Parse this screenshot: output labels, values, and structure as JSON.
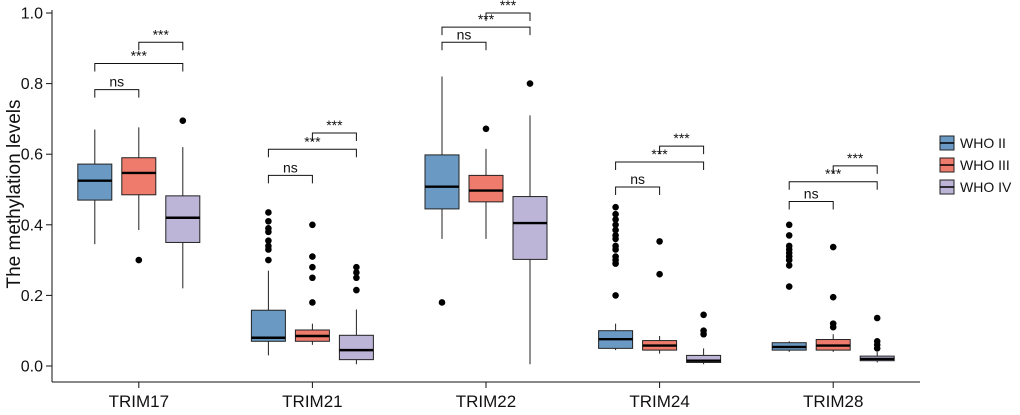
{
  "chart_data": {
    "type": "boxplot",
    "title": "",
    "xlabel": "",
    "ylabel": "The methylation levels",
    "ylim": [
      0,
      1.0
    ],
    "yticks": [
      "0.0",
      "0.2",
      "0.4",
      "0.6",
      "0.8",
      "1.0"
    ],
    "grid": false,
    "legend_position": "right",
    "categories": [
      "TRIM17",
      "TRIM21",
      "TRIM22",
      "TRIM24",
      "TRIM28"
    ],
    "series": [
      {
        "name": "WHO II",
        "color": "#6a9ac4",
        "boxes": [
          {
            "whisker_low": 0.345,
            "q1": 0.47,
            "median": 0.525,
            "q3": 0.572,
            "whisker_high": 0.67,
            "outliers": []
          },
          {
            "whisker_low": 0.03,
            "q1": 0.07,
            "median": 0.08,
            "q3": 0.158,
            "whisker_high": 0.27,
            "outliers": [
              0.3,
              0.33,
              0.34,
              0.355,
              0.38,
              0.39,
              0.41,
              0.435
            ]
          },
          {
            "whisker_low": 0.36,
            "q1": 0.445,
            "median": 0.508,
            "q3": 0.598,
            "whisker_high": 0.82,
            "outliers": [
              0.18
            ]
          },
          {
            "whisker_low": 0.045,
            "q1": 0.05,
            "median": 0.076,
            "q3": 0.1,
            "whisker_high": 0.12,
            "outliers": [
              0.2,
              0.29,
              0.3,
              0.31,
              0.33,
              0.34,
              0.36,
              0.37,
              0.385,
              0.4,
              0.415,
              0.43,
              0.45
            ]
          },
          {
            "whisker_low": 0.04,
            "q1": 0.045,
            "median": 0.054,
            "q3": 0.066,
            "whisker_high": 0.07,
            "outliers": [
              0.225,
              0.285,
              0.3,
              0.31,
              0.32,
              0.33,
              0.34,
              0.37,
              0.4
            ]
          }
        ]
      },
      {
        "name": "WHO III",
        "color": "#ee7b6c",
        "boxes": [
          {
            "whisker_low": 0.385,
            "q1": 0.485,
            "median": 0.547,
            "q3": 0.59,
            "whisker_high": 0.676,
            "outliers": [
              0.3
            ]
          },
          {
            "whisker_low": 0.06,
            "q1": 0.07,
            "median": 0.085,
            "q3": 0.102,
            "whisker_high": 0.12,
            "outliers": [
              0.18,
              0.25,
              0.28,
              0.31,
              0.4
            ]
          },
          {
            "whisker_low": 0.36,
            "q1": 0.465,
            "median": 0.497,
            "q3": 0.54,
            "whisker_high": 0.615,
            "outliers": [
              0.672
            ]
          },
          {
            "whisker_low": 0.035,
            "q1": 0.045,
            "median": 0.058,
            "q3": 0.072,
            "whisker_high": 0.085,
            "outliers": [
              0.26,
              0.353
            ]
          },
          {
            "whisker_low": 0.04,
            "q1": 0.045,
            "median": 0.058,
            "q3": 0.075,
            "whisker_high": 0.09,
            "outliers": [
              0.11,
              0.12,
              0.195,
              0.337
            ]
          }
        ]
      },
      {
        "name": "WHO IV",
        "color": "#bcb5d8",
        "boxes": [
          {
            "whisker_low": 0.22,
            "q1": 0.35,
            "median": 0.42,
            "q3": 0.482,
            "whisker_high": 0.62,
            "outliers": [
              0.695
            ]
          },
          {
            "whisker_low": 0.005,
            "q1": 0.018,
            "median": 0.045,
            "q3": 0.087,
            "whisker_high": 0.16,
            "outliers": [
              0.215,
              0.25,
              0.265,
              0.28
            ]
          },
          {
            "whisker_low": 0.005,
            "q1": 0.302,
            "median": 0.405,
            "q3": 0.48,
            "whisker_high": 0.71,
            "outliers": [
              0.8
            ]
          },
          {
            "whisker_low": 0.005,
            "q1": 0.01,
            "median": 0.015,
            "q3": 0.03,
            "whisker_high": 0.05,
            "outliers": [
              0.09,
              0.1,
              0.145
            ]
          },
          {
            "whisker_low": 0.01,
            "q1": 0.015,
            "median": 0.02,
            "q3": 0.028,
            "whisker_high": 0.04,
            "outliers": [
              0.05,
              0.06,
              0.07,
              0.136
            ]
          }
        ]
      }
    ],
    "significance": [
      {
        "category": "TRIM17",
        "pairs": [
          {
            "from": "WHO II",
            "to": "WHO III",
            "label": "ns",
            "y": 0.783
          },
          {
            "from": "WHO II",
            "to": "WHO IV",
            "label": "***",
            "y": 0.857
          },
          {
            "from": "WHO III",
            "to": "WHO IV",
            "label": "***",
            "y": 0.917
          }
        ]
      },
      {
        "category": "TRIM21",
        "pairs": [
          {
            "from": "WHO II",
            "to": "WHO III",
            "label": "ns",
            "y": 0.54
          },
          {
            "from": "WHO II",
            "to": "WHO IV",
            "label": "***",
            "y": 0.614
          },
          {
            "from": "WHO III",
            "to": "WHO IV",
            "label": "***",
            "y": 0.66
          }
        ]
      },
      {
        "category": "TRIM22",
        "pairs": [
          {
            "from": "WHO II",
            "to": "WHO III",
            "label": "ns",
            "y": 0.917
          },
          {
            "from": "WHO II",
            "to": "WHO IV",
            "label": "***",
            "y": 0.96
          },
          {
            "from": "WHO III",
            "to": "WHO IV",
            "label": "***",
            "y": 1.0
          }
        ]
      },
      {
        "category": "TRIM24",
        "pairs": [
          {
            "from": "WHO II",
            "to": "WHO III",
            "label": "ns",
            "y": 0.507
          },
          {
            "from": "WHO II",
            "to": "WHO IV",
            "label": "***",
            "y": 0.578
          },
          {
            "from": "WHO III",
            "to": "WHO IV",
            "label": "***",
            "y": 0.623
          }
        ]
      },
      {
        "category": "TRIM28",
        "pairs": [
          {
            "from": "WHO II",
            "to": "WHO III",
            "label": "ns",
            "y": 0.466
          },
          {
            "from": "WHO II",
            "to": "WHO IV",
            "label": "***",
            "y": 0.522
          },
          {
            "from": "WHO III",
            "to": "WHO IV",
            "label": "***",
            "y": 0.567
          }
        ]
      }
    ]
  }
}
